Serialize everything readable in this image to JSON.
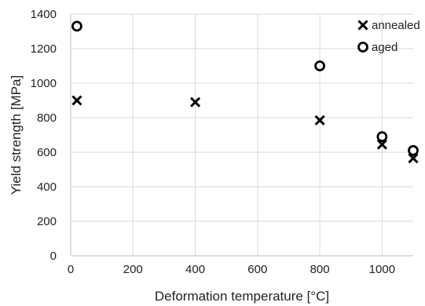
{
  "chart_data": {
    "type": "scatter",
    "xlabel": "Deformation temperature [°C]",
    "ylabel": "Yield strength [MPa]",
    "xlim": [
      0,
      1100
    ],
    "ylim": [
      0,
      1400
    ],
    "x_ticks": [
      0,
      200,
      400,
      600,
      800,
      1000
    ],
    "y_ticks": [
      0,
      200,
      400,
      600,
      800,
      1000,
      1200,
      1400
    ],
    "grid": true,
    "legend_position": "top-right",
    "series": [
      {
        "name": "annealed",
        "marker": "cross",
        "color": "#000000",
        "points": [
          {
            "x": 20,
            "y": 900
          },
          {
            "x": 400,
            "y": 890
          },
          {
            "x": 800,
            "y": 785
          },
          {
            "x": 1000,
            "y": 645
          },
          {
            "x": 1100,
            "y": 565
          }
        ]
      },
      {
        "name": "aged",
        "marker": "circle",
        "color": "#000000",
        "points": [
          {
            "x": 20,
            "y": 1330
          },
          {
            "x": 800,
            "y": 1100
          },
          {
            "x": 1000,
            "y": 690
          },
          {
            "x": 1100,
            "y": 610
          }
        ]
      }
    ]
  }
}
